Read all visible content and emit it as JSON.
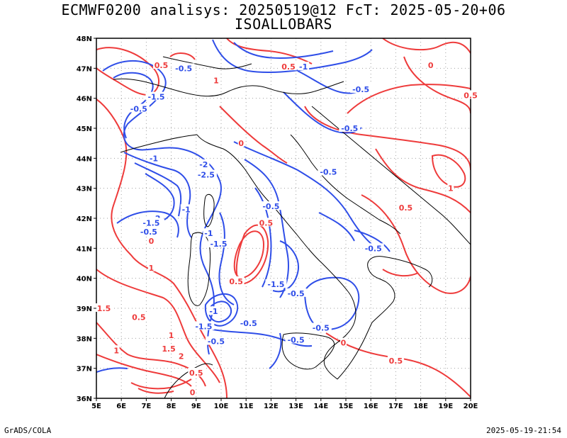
{
  "header": {
    "title_line1": "ECMWF0200 analisys: 20250519@12 FcT: 2025-05-20+06",
    "title_line2": "ISOALLOBARS"
  },
  "footer": {
    "left": "GrADS/COLA",
    "right": "2025-05-19-21:54"
  },
  "map": {
    "lon_labels": [
      "5E",
      "6E",
      "7E",
      "8E",
      "9E",
      "10E",
      "11E",
      "12E",
      "13E",
      "14E",
      "15E",
      "16E",
      "17E",
      "18E",
      "19E",
      "20E"
    ],
    "lat_labels": [
      "48N",
      "47N",
      "46N",
      "45N",
      "44N",
      "43N",
      "42N",
      "41N",
      "40N",
      "39N",
      "38N",
      "37N",
      "36N"
    ],
    "lon_range": [
      5,
      20
    ],
    "lat_range": [
      36,
      48
    ],
    "grid": "dotted",
    "colors": {
      "positive": "#ee3b3b",
      "negative": "#2f4ee8",
      "coast": "#000000",
      "grid": "#a0a0a0"
    },
    "contour_labels": [
      {
        "text": "-0.5",
        "color": "negative",
        "lon": 8.5,
        "lat": 47.0
      },
      {
        "text": "0.5",
        "color": "positive",
        "lon": 7.6,
        "lat": 47.1
      },
      {
        "text": "1",
        "color": "positive",
        "lon": 9.8,
        "lat": 46.6
      },
      {
        "text": "0.5",
        "color": "positive",
        "lon": 12.7,
        "lat": 47.05
      },
      {
        "text": "-1",
        "color": "negative",
        "lon": 13.3,
        "lat": 47.05
      },
      {
        "text": "0",
        "color": "positive",
        "lon": 18.4,
        "lat": 47.1
      },
      {
        "text": "-0.5",
        "color": "negative",
        "lon": 15.6,
        "lat": 46.3
      },
      {
        "text": "-1.5",
        "color": "negative",
        "lon": 7.4,
        "lat": 46.05
      },
      {
        "text": "-0.5",
        "color": "negative",
        "lon": 6.7,
        "lat": 45.65
      },
      {
        "text": "0.5",
        "color": "positive",
        "lon": 20.0,
        "lat": 46.1
      },
      {
        "text": "-0.5",
        "color": "negative",
        "lon": 15.15,
        "lat": 45.0
      },
      {
        "text": "0",
        "color": "positive",
        "lon": 10.8,
        "lat": 44.5
      },
      {
        "text": "-1",
        "color": "negative",
        "lon": 7.3,
        "lat": 44.0
      },
      {
        "text": "-2",
        "color": "negative",
        "lon": 9.3,
        "lat": 43.8
      },
      {
        "text": "-2.5",
        "color": "negative",
        "lon": 9.4,
        "lat": 43.45
      },
      {
        "text": "-0.5",
        "color": "negative",
        "lon": 14.3,
        "lat": 43.55
      },
      {
        "text": "1",
        "color": "positive",
        "lon": 19.2,
        "lat": 43.0
      },
      {
        "text": "-0.5",
        "color": "negative",
        "lon": 12.0,
        "lat": 42.4
      },
      {
        "text": "0.5",
        "color": "positive",
        "lon": 17.4,
        "lat": 42.35
      },
      {
        "text": "-1",
        "color": "negative",
        "lon": 8.6,
        "lat": 42.3
      },
      {
        "text": "-2",
        "color": "negative",
        "lon": 7.4,
        "lat": 42.0
      },
      {
        "text": "-1.5",
        "color": "negative",
        "lon": 7.2,
        "lat": 41.85
      },
      {
        "text": "-0.5",
        "color": "negative",
        "lon": 7.1,
        "lat": 41.55
      },
      {
        "text": "0",
        "color": "positive",
        "lon": 7.2,
        "lat": 41.25
      },
      {
        "text": "0.5",
        "color": "positive",
        "lon": 11.8,
        "lat": 41.85
      },
      {
        "text": "-0.5",
        "color": "negative",
        "lon": 16.1,
        "lat": 41.0
      },
      {
        "text": "-1",
        "color": "negative",
        "lon": 9.5,
        "lat": 41.5
      },
      {
        "text": "-1.5",
        "color": "negative",
        "lon": 9.9,
        "lat": 41.15
      },
      {
        "text": "1",
        "color": "positive",
        "lon": 7.2,
        "lat": 40.35
      },
      {
        "text": "0.5",
        "color": "positive",
        "lon": 10.6,
        "lat": 39.9
      },
      {
        "text": "-1.5",
        "color": "negative",
        "lon": 12.2,
        "lat": 39.8
      },
      {
        "text": "-0.5",
        "color": "negative",
        "lon": 13.0,
        "lat": 39.5
      },
      {
        "text": "1.5",
        "color": "positive",
        "lon": 5.3,
        "lat": 39.0
      },
      {
        "text": "0.5",
        "color": "positive",
        "lon": 6.7,
        "lat": 38.7
      },
      {
        "text": "-1",
        "color": "negative",
        "lon": 9.7,
        "lat": 38.9
      },
      {
        "text": "-1.5",
        "color": "negative",
        "lon": 9.3,
        "lat": 38.4
      },
      {
        "text": "-0.5",
        "color": "negative",
        "lon": 11.1,
        "lat": 38.5
      },
      {
        "text": "-0.5",
        "color": "negative",
        "lon": 14.0,
        "lat": 38.35
      },
      {
        "text": "1",
        "color": "positive",
        "lon": 8.0,
        "lat": 38.1
      },
      {
        "text": "-0.5",
        "color": "negative",
        "lon": 9.8,
        "lat": 37.9
      },
      {
        "text": "-0.5",
        "color": "negative",
        "lon": 13.0,
        "lat": 37.95
      },
      {
        "text": "0",
        "color": "positive",
        "lon": 14.9,
        "lat": 37.85
      },
      {
        "text": "1",
        "color": "positive",
        "lon": 5.8,
        "lat": 37.6
      },
      {
        "text": "1.5",
        "color": "positive",
        "lon": 7.9,
        "lat": 37.65
      },
      {
        "text": "2",
        "color": "positive",
        "lon": 8.4,
        "lat": 37.4
      },
      {
        "text": "0.5",
        "color": "positive",
        "lon": 17.0,
        "lat": 37.25
      },
      {
        "text": "0.5",
        "color": "positive",
        "lon": 9.0,
        "lat": 36.85
      },
      {
        "text": "0",
        "color": "positive",
        "lon": 8.85,
        "lat": 36.2
      }
    ]
  }
}
